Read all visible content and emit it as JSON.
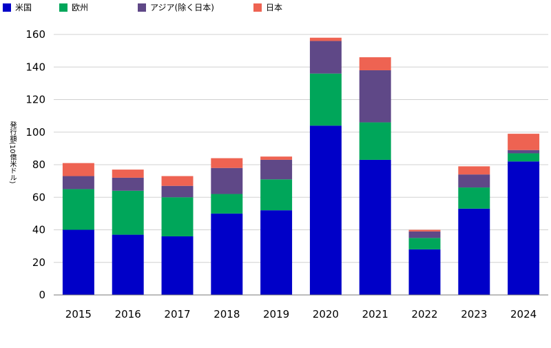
{
  "colors": {
    "us": "#0000C8",
    "europe": "#00A65A",
    "asia": "#5F4887",
    "japan": "#EE6352",
    "grid": "#D0D0D0",
    "axis": "#777777"
  },
  "legend": [
    {
      "label": "米国",
      "color": "#0000C8"
    },
    {
      "label": "欧州",
      "color": "#00A65A"
    },
    {
      "label": "アジア(除く日本)",
      "color": "#5F4887"
    },
    {
      "label": "日本",
      "color": "#EE6352"
    }
  ],
  "chart_data": {
    "type": "bar",
    "stacked": true,
    "title": "",
    "xlabel": "",
    "ylabel": "発行額(10億米ドル)",
    "ylim": [
      0,
      160
    ],
    "yticks": [
      0,
      20,
      40,
      60,
      80,
      100,
      120,
      140,
      160
    ],
    "grid": true,
    "legend_position": "top-left",
    "categories": [
      "2015",
      "2016",
      "2017",
      "2018",
      "2019",
      "2020",
      "2021",
      "2022",
      "2023",
      "2024"
    ],
    "series": [
      {
        "name": "米国",
        "values": [
          40,
          37,
          36,
          50,
          52,
          104,
          83,
          28,
          53,
          82
        ]
      },
      {
        "name": "欧州",
        "values": [
          25,
          27,
          24,
          12,
          19,
          32,
          23,
          7,
          13,
          5
        ]
      },
      {
        "name": "アジア(除く日本)",
        "values": [
          8,
          8,
          7,
          16,
          12,
          20,
          32,
          4,
          8,
          2
        ]
      },
      {
        "name": "日本",
        "values": [
          8,
          5,
          6,
          6,
          2,
          2,
          8,
          1,
          5,
          10
        ]
      }
    ]
  }
}
